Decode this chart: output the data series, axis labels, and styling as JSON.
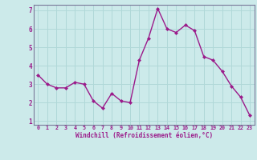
{
  "x": [
    0,
    1,
    2,
    3,
    4,
    5,
    6,
    7,
    8,
    9,
    10,
    11,
    12,
    13,
    14,
    15,
    16,
    17,
    18,
    19,
    20,
    21,
    22,
    23
  ],
  "y": [
    3.5,
    3.0,
    2.8,
    2.8,
    3.1,
    3.0,
    2.1,
    1.7,
    2.5,
    2.1,
    2.0,
    4.3,
    5.5,
    7.1,
    6.0,
    5.8,
    6.2,
    5.9,
    4.5,
    4.3,
    3.7,
    2.9,
    2.3,
    1.3
  ],
  "line_color": "#9b1a8a",
  "marker": "D",
  "marker_size": 2.0,
  "bg_color": "#cceaea",
  "grid_color": "#b0d8d8",
  "xlabel": "Windchill (Refroidissement éolien,°C)",
  "xlabel_color": "#9b1a8a",
  "tick_color": "#9b1a8a",
  "xlim": [
    -0.5,
    23.5
  ],
  "ylim": [
    0.8,
    7.3
  ],
  "yticks": [
    1,
    2,
    3,
    4,
    5,
    6,
    7
  ],
  "xticks": [
    0,
    1,
    2,
    3,
    4,
    5,
    6,
    7,
    8,
    9,
    10,
    11,
    12,
    13,
    14,
    15,
    16,
    17,
    18,
    19,
    20,
    21,
    22,
    23
  ],
  "spine_color": "#7a7a9a",
  "line_width": 1.0
}
